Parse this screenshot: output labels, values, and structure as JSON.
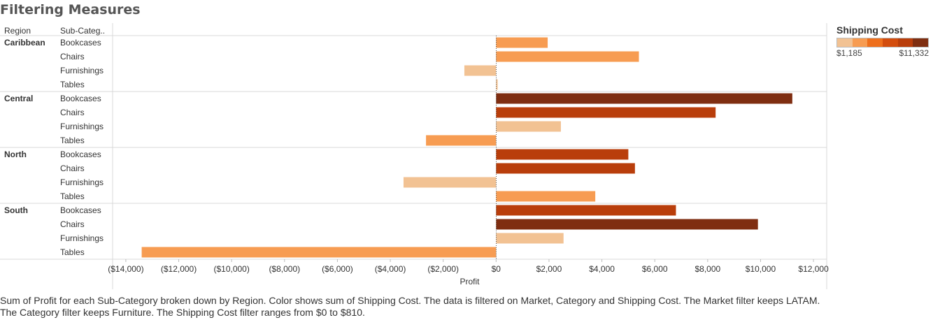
{
  "title": "Filtering Measures",
  "headers": {
    "region": "Region",
    "subcategory": "Sub-Categ.."
  },
  "legend": {
    "title": "Shipping Cost",
    "min_label": "$1,185",
    "max_label": "$11,332",
    "colors": [
      "#f2c293",
      "#f79c52",
      "#ee6f1c",
      "#d34d0e",
      "#b93e0b",
      "#7f2e11"
    ]
  },
  "chart_data": {
    "type": "bar",
    "orientation": "horizontal",
    "xlabel": "Profit",
    "xlim": [
      -14500,
      12500
    ],
    "xticks": [
      -14000,
      -12000,
      -10000,
      -8000,
      -6000,
      -4000,
      -2000,
      0,
      2000,
      4000,
      6000,
      8000,
      10000,
      12000
    ],
    "xtick_labels": [
      "($14,000)",
      "($12,000)",
      "($10,000)",
      "($8,000)",
      "($6,000)",
      "($4,000)",
      "($2,000)",
      "$0",
      "$2,000",
      "$4,000",
      "$6,000",
      "$8,000",
      "$10,000",
      "$12,000"
    ],
    "color_measure": "Shipping Cost",
    "groups": [
      {
        "region": "Caribbean",
        "rows": [
          {
            "subcategory": "Bookcases",
            "profit": 1950,
            "color": "#f79c52"
          },
          {
            "subcategory": "Chairs",
            "profit": 5400,
            "color": "#f79c52"
          },
          {
            "subcategory": "Furnishings",
            "profit": -1200,
            "color": "#f2c293"
          },
          {
            "subcategory": "Tables",
            "profit": 60,
            "color": "#f2c293"
          }
        ]
      },
      {
        "region": "Central",
        "rows": [
          {
            "subcategory": "Bookcases",
            "profit": 11200,
            "color": "#7f2e11"
          },
          {
            "subcategory": "Chairs",
            "profit": 8300,
            "color": "#b93e0b"
          },
          {
            "subcategory": "Furnishings",
            "profit": 2450,
            "color": "#f2c293"
          },
          {
            "subcategory": "Tables",
            "profit": -2650,
            "color": "#f79c52"
          }
        ]
      },
      {
        "region": "North",
        "rows": [
          {
            "subcategory": "Bookcases",
            "profit": 5000,
            "color": "#b93e0b"
          },
          {
            "subcategory": "Chairs",
            "profit": 5250,
            "color": "#b93e0b"
          },
          {
            "subcategory": "Furnishings",
            "profit": -3500,
            "color": "#f2c293"
          },
          {
            "subcategory": "Tables",
            "profit": 3750,
            "color": "#f79c52"
          }
        ]
      },
      {
        "region": "South",
        "rows": [
          {
            "subcategory": "Bookcases",
            "profit": 6800,
            "color": "#b93e0b"
          },
          {
            "subcategory": "Chairs",
            "profit": 9900,
            "color": "#7f2e11"
          },
          {
            "subcategory": "Furnishings",
            "profit": 2550,
            "color": "#f2c293"
          },
          {
            "subcategory": "Tables",
            "profit": -13400,
            "color": "#f79c52"
          }
        ]
      }
    ]
  },
  "caption": "Sum of Profit for each Sub-Category broken down by Region.  Color shows sum of Shipping Cost. The data is filtered on Market, Category and Shipping Cost. The Market filter keeps LATAM. The Category filter keeps Furniture. The Shipping Cost filter ranges from $0 to $810."
}
